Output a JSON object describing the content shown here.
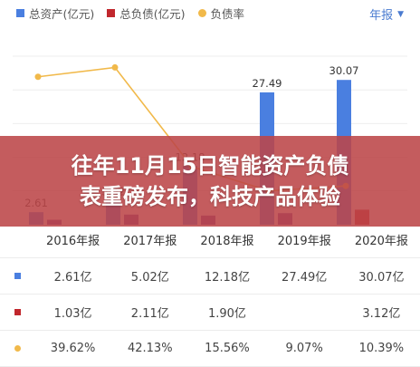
{
  "header": {
    "period_label": "年报",
    "period_icon": "chevron-down-icon"
  },
  "banner": {
    "line1": "往年11月15日智能资产负债",
    "line2": "表重磅发布，科技产品体验"
  },
  "colors": {
    "assets": "#4a7fe0",
    "liabilities": "#c1272d",
    "ratio": "#f1b94a",
    "liabilities_under_banner": "#6a3d9a"
  },
  "chart_data": {
    "type": "bar",
    "categories": [
      "2016年报",
      "2017年报",
      "2018年报",
      "2019年报",
      "2020年报"
    ],
    "series": [
      {
        "name": "总资产(亿元)",
        "kind": "bar",
        "values": [
          2.61,
          5.02,
          12.18,
          27.49,
          30.07
        ],
        "value_labels": [
          "2.61",
          "5.02",
          "12.18",
          "27.49",
          "30.07"
        ]
      },
      {
        "name": "总负债(亿元)",
        "kind": "bar",
        "values": [
          1.03,
          2.11,
          1.9,
          2.4,
          3.12
        ]
      },
      {
        "name": "负债率",
        "kind": "line",
        "values": [
          39.62,
          42.13,
          15.56,
          9.07,
          10.39
        ]
      }
    ],
    "legend_position": "top-left"
  },
  "table": {
    "headers": [
      "2016年报",
      "2017年报",
      "2018年报",
      "2019年报",
      "2020年报"
    ],
    "rows": [
      {
        "marker": "square",
        "color": "#4a7fe0",
        "cells": [
          "2.61亿",
          "5.02亿",
          "12.18亿",
          "27.49亿",
          "30.07亿"
        ]
      },
      {
        "marker": "square",
        "color": "#c1272d",
        "cells": [
          "1.03亿",
          "2.11亿",
          "1.90亿",
          "",
          "3.12亿"
        ]
      },
      {
        "marker": "dot",
        "color": "#f1b94a",
        "cells": [
          "39.62%",
          "42.13%",
          "15.56%",
          "9.07%",
          "10.39%"
        ]
      }
    ]
  }
}
